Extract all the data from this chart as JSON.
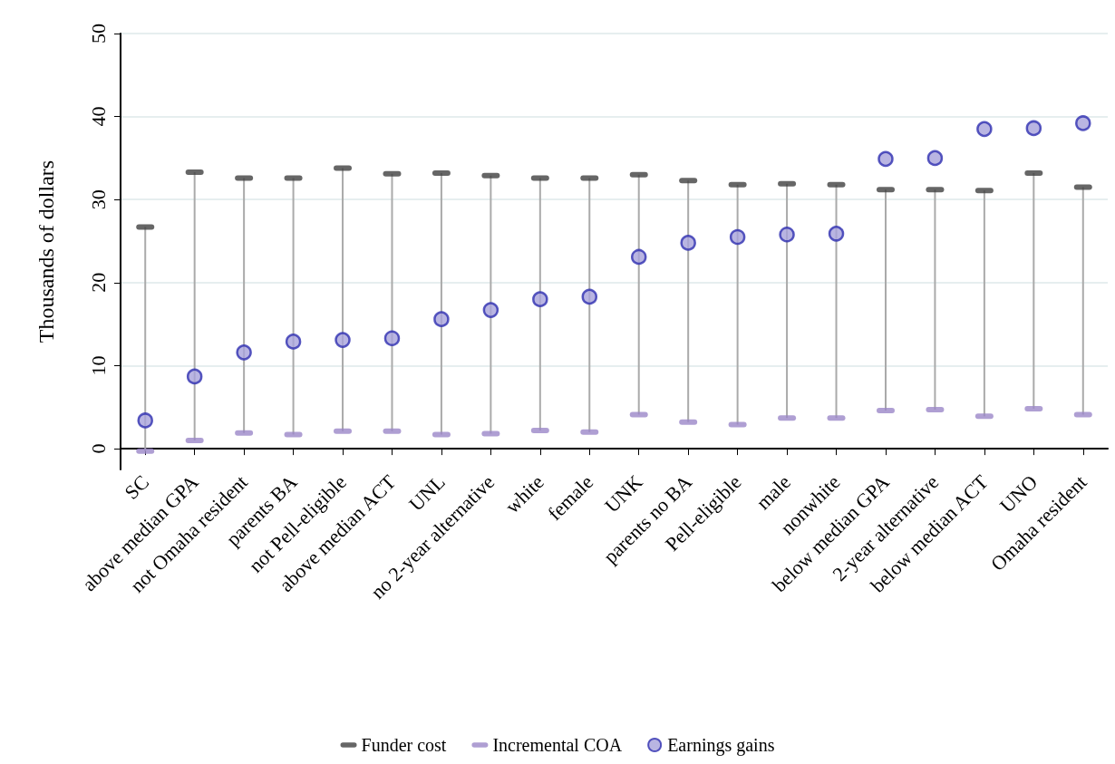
{
  "chart_data": {
    "type": "scatter",
    "ylabel": "Thousands of dollars",
    "categories": [
      "SC",
      "above median GPA",
      "not Omaha resident",
      "parents BA",
      "not Pell-eligible",
      "above median ACT",
      "UNL",
      "no 2-year alternative",
      "white",
      "female",
      "UNK",
      "parents no BA",
      "Pell-eligible",
      "male",
      "nonwhite",
      "below median GPA",
      "2-year alternative",
      "below median ACT",
      "UNO",
      "Omaha resident"
    ],
    "series": [
      {
        "name": "Funder cost",
        "color": "#404040",
        "values": [
          26.7,
          33.3,
          32.6,
          32.6,
          33.8,
          33.1,
          33.2,
          32.9,
          32.6,
          32.6,
          33.0,
          32.3,
          31.8,
          31.9,
          31.8,
          31.2,
          31.2,
          31.1,
          33.2,
          31.5
        ]
      },
      {
        "name": "Incremental COA",
        "color": "#9b87c8",
        "values": [
          -0.3,
          1.0,
          1.9,
          1.7,
          2.1,
          2.1,
          1.7,
          1.8,
          2.2,
          2.0,
          4.1,
          3.2,
          2.9,
          3.7,
          3.7,
          4.6,
          4.7,
          3.9,
          4.8,
          4.1
        ]
      },
      {
        "name": "Earnings gains",
        "marker": "circle",
        "color": "#a7a3db",
        "values": [
          3.4,
          8.7,
          11.6,
          12.9,
          13.1,
          13.3,
          15.6,
          16.7,
          18.0,
          18.3,
          23.1,
          24.8,
          25.5,
          25.8,
          25.9,
          34.9,
          35.0,
          38.5,
          38.6,
          39.2
        ]
      }
    ],
    "ylim": [
      -2.5,
      50
    ],
    "yticks": [
      0,
      10,
      20,
      30,
      40,
      50
    ],
    "grid": "y",
    "legend": "bottom"
  }
}
